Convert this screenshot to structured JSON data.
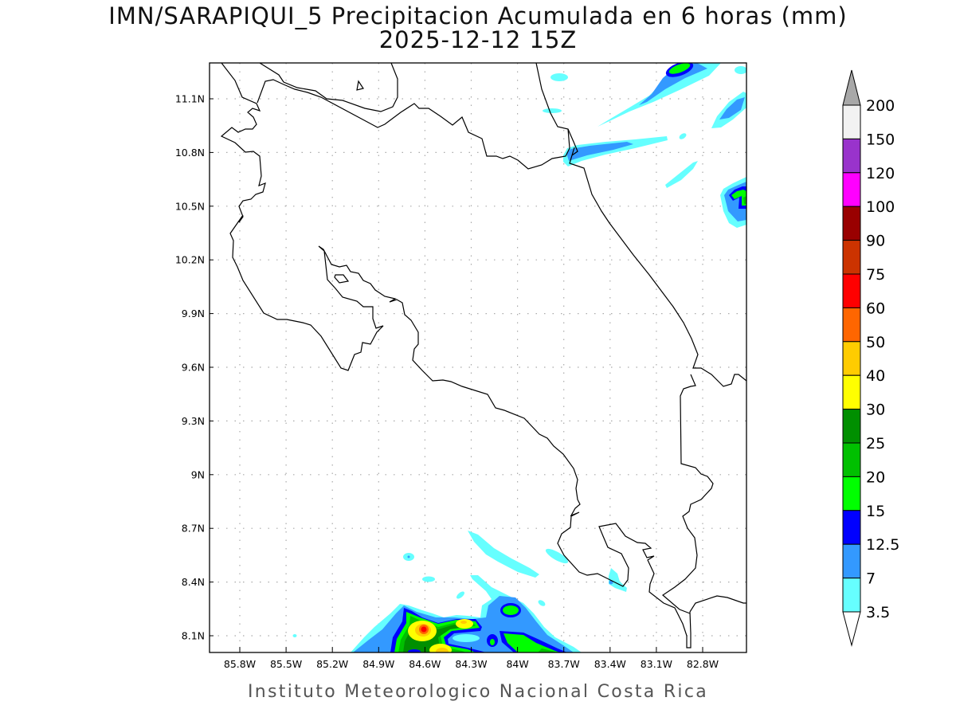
{
  "header": {
    "title": "IMN/SARAPIQUI_5 Precipitacion Acumulada en 6 horas (mm)",
    "subtitle": "2025-12-12 15Z"
  },
  "footer": "Instituto Meteorologico Nacional Costa Rica",
  "map": {
    "extent": {
      "lon_west": -86.0,
      "lon_east": -82.5,
      "lat_south": 8.0,
      "lat_north": 11.3
    },
    "lat_labels": [
      {
        "value": 11.1,
        "label": "11.1N"
      },
      {
        "value": 10.8,
        "label": "10.8N"
      },
      {
        "value": 10.5,
        "label": "10.5N"
      },
      {
        "value": 10.2,
        "label": "10.2N"
      },
      {
        "value": 9.9,
        "label": "9.9N"
      },
      {
        "value": 9.6,
        "label": "9.6N"
      },
      {
        "value": 9.3,
        "label": "9.3N"
      },
      {
        "value": 9.0,
        "label": "9N"
      },
      {
        "value": 8.7,
        "label": "8.7N"
      },
      {
        "value": 8.4,
        "label": "8.4N"
      },
      {
        "value": 8.1,
        "label": "8.1N"
      }
    ],
    "lon_labels": [
      {
        "value": -85.8,
        "label": "85.8W"
      },
      {
        "value": -85.5,
        "label": "85.5W"
      },
      {
        "value": -85.2,
        "label": "85.2W"
      },
      {
        "value": -84.9,
        "label": "84.9W"
      },
      {
        "value": -84.6,
        "label": "84.6W"
      },
      {
        "value": -84.3,
        "label": "84.3W"
      },
      {
        "value": -84.0,
        "label": "84W"
      },
      {
        "value": -83.7,
        "label": "83.7W"
      },
      {
        "value": -83.4,
        "label": "83.4W"
      },
      {
        "value": -83.1,
        "label": "83.1W"
      },
      {
        "value": -82.8,
        "label": "82.8W"
      }
    ],
    "grid": true
  },
  "colorbar": {
    "levels": [
      "200",
      "150",
      "120",
      "100",
      "90",
      "75",
      "60",
      "50",
      "40",
      "30",
      "25",
      "20",
      "15",
      "12.5",
      "7",
      "3.5"
    ],
    "colors": [
      "#f2f2f2",
      "#9933cc",
      "#ff00ff",
      "#990000",
      "#cc3300",
      "#ff0000",
      "#ff6600",
      "#ffcc00",
      "#ffff00",
      "#008f00",
      "#00c000",
      "#00ff00",
      "#0000ff",
      "#3399ff",
      "#66ffff"
    ],
    "over_color": "#a8a8a8",
    "under_color": "#ffffff"
  }
}
